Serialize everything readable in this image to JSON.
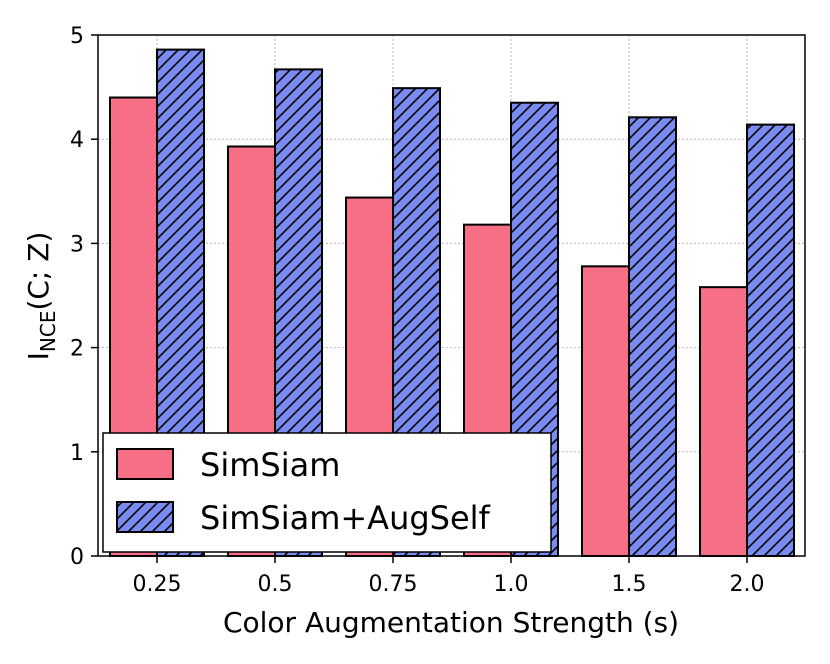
{
  "chart_data": {
    "type": "bar",
    "categories": [
      "0.25",
      "0.5",
      "0.75",
      "1.0",
      "1.5",
      "2.0"
    ],
    "series": [
      {
        "name": "SimSiam",
        "values": [
          4.4,
          3.93,
          3.44,
          3.18,
          2.78,
          2.58
        ],
        "color": "#f76e87",
        "hatch": false
      },
      {
        "name": "SimSiam+AugSelf",
        "values": [
          4.86,
          4.67,
          4.49,
          4.35,
          4.21,
          4.14
        ],
        "color": "#7a8cf2",
        "hatch": true
      }
    ],
    "xlabel": "Color Augmentation Strength (s)",
    "ylabel": {
      "main": "I",
      "subscript": "NCE",
      "rest": "(C; Z)"
    },
    "ylim": [
      0,
      5
    ],
    "yticks": [
      "0",
      "1",
      "2",
      "3",
      "4",
      "5"
    ],
    "grid": true,
    "legend_position": "lower-left"
  }
}
